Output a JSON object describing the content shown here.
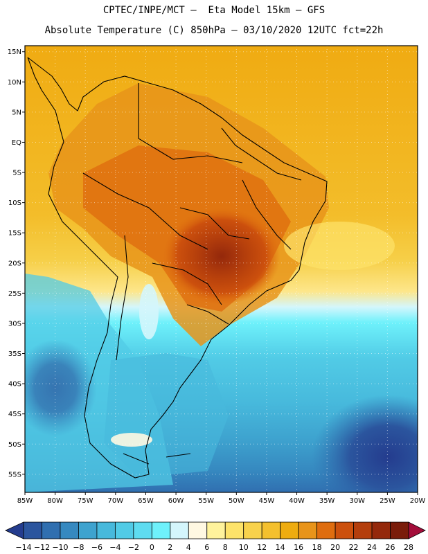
{
  "header": {
    "line1": "CPTEC/INPE/MCT –  Eta Model 15km – GFS",
    "line2": "Absolute Temperature (C) 850hPa – 03/10/2020 12UTC fct=22h"
  },
  "map": {
    "lat_labels": [
      "15N",
      "10N",
      "5N",
      "EQ",
      "5S",
      "10S",
      "15S",
      "20S",
      "25S",
      "30S",
      "35S",
      "40S",
      "45S",
      "50S",
      "55S"
    ],
    "lon_labels": [
      "85W",
      "80W",
      "75W",
      "70W",
      "65W",
      "60W",
      "55W",
      "50W",
      "45W",
      "40W",
      "35W",
      "30W",
      "25W",
      "20W"
    ],
    "lon_range": [
      -85,
      -20
    ],
    "lat_range": [
      -58,
      16
    ]
  },
  "colorbar": {
    "labels": [
      "-14",
      "-12",
      "-10",
      "-8",
      "-6",
      "-4",
      "-2",
      "0",
      "2",
      "4",
      "6",
      "8",
      "10",
      "12",
      "14",
      "16",
      "18",
      "20",
      "22",
      "24",
      "26",
      "28"
    ],
    "colors": [
      "#243c8e",
      "#2b559e",
      "#306fb0",
      "#3689c0",
      "#3ea3cf",
      "#47b9dc",
      "#51cbe6",
      "#5edcf0",
      "#6ef1fb",
      "#d4f6fc",
      "#fff8e2",
      "#fff39c",
      "#fde36a",
      "#f8d24c",
      "#f4c02e",
      "#eeac10",
      "#e8941a",
      "#df6d0f",
      "#cc500d",
      "#b43e0c",
      "#94280b",
      "#7a1c0a",
      "#a30d3a"
    ]
  }
}
